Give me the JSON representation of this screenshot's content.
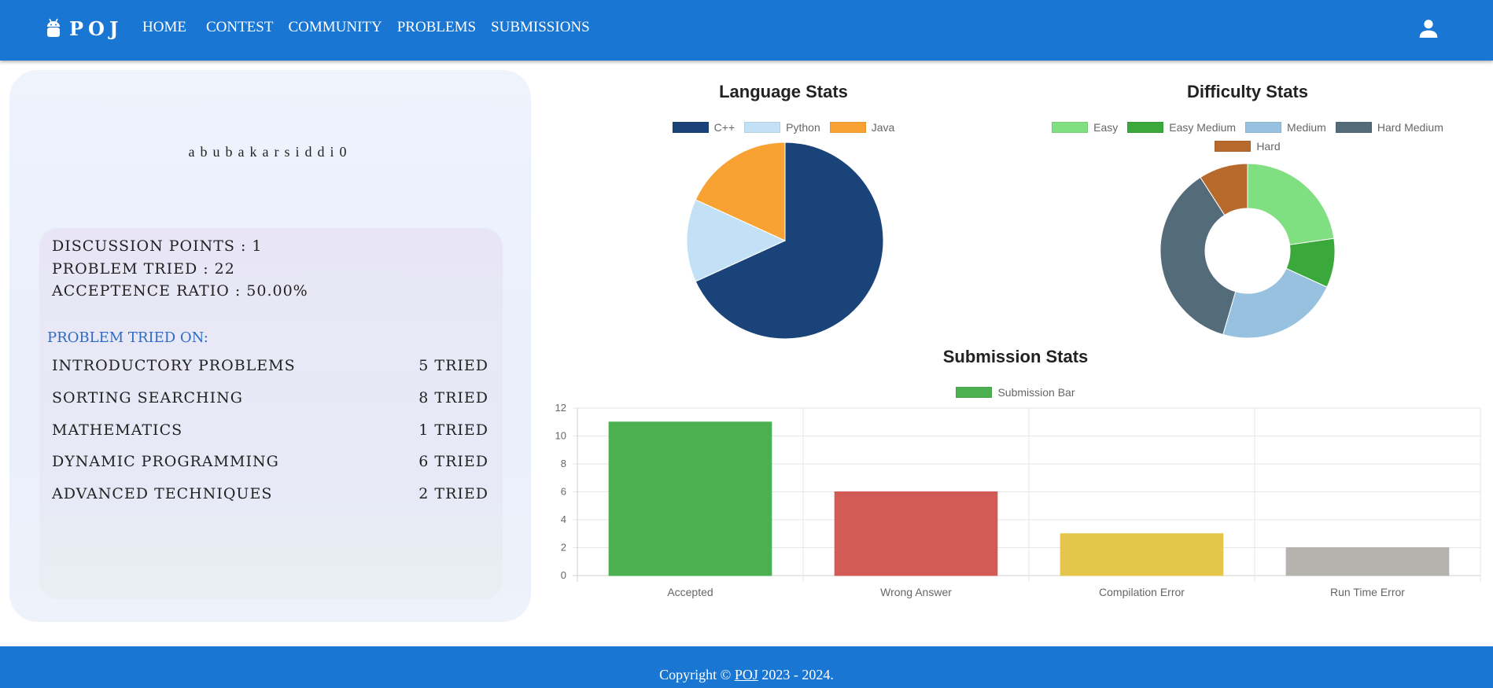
{
  "nav": {
    "brand": "POJ",
    "links": [
      "HOME",
      "CONTEST",
      "COMMUNITY",
      "PROBLEMS",
      "SUBMISSIONS"
    ],
    "brand_icon": "android-icon",
    "user_icon": "user-icon"
  },
  "profile": {
    "username": "abubakarsiddi0",
    "discussion_points": "DISCUSSION POINTS : 1",
    "problem_tried": "PROBLEM TRIED : 22",
    "acceptance_ratio": "ACCEPTENCE RATIO : 50.00%",
    "tried_heading": "PROBLEM TRIED ON:",
    "categories": [
      {
        "name": "INTRODUCTORY PROBLEMS",
        "count": "5 TRIED"
      },
      {
        "name": "SORTING SEARCHING",
        "count": "8 TRIED"
      },
      {
        "name": "MATHEMATICS",
        "count": "1 TRIED"
      },
      {
        "name": "DYNAMIC PROGRAMMING",
        "count": "6 TRIED"
      },
      {
        "name": "ADVANCED TECHNIQUES",
        "count": "2 TRIED"
      }
    ]
  },
  "chart_data": [
    {
      "type": "pie",
      "title": "Language Stats",
      "legend": "top",
      "labels": [
        "C++",
        "Python",
        "Java"
      ],
      "values": [
        15,
        3,
        4
      ],
      "colors": [
        "#1a4379",
        "#c3e1f6",
        "#f7a233"
      ]
    },
    {
      "type": "pie",
      "variant": "doughnut",
      "title": "Difficulty Stats",
      "legend": "top",
      "labels": [
        "Easy",
        "Easy Medium",
        "Medium",
        "Hard Medium",
        "Hard"
      ],
      "values": [
        5,
        2,
        5,
        8,
        2
      ],
      "colors": [
        "#80df80",
        "#3aa83a",
        "#97c1df",
        "#546b7a",
        "#b86a2c"
      ]
    },
    {
      "type": "bar",
      "title": "Submission Stats",
      "legend": "top",
      "categories": [
        "Accepted",
        "Wrong Answer",
        "Compilation Error",
        "Run Time Error"
      ],
      "series": [
        {
          "name": "Submission Bar",
          "values": [
            11,
            6,
            3,
            2
          ]
        }
      ],
      "colors": [
        "#4caf50",
        "#d35b55",
        "#e3c64b",
        "#b4b3ad"
      ],
      "legend_color": "#4caf50",
      "ylim": [
        0,
        12
      ],
      "yticks": [
        0,
        2,
        4,
        6,
        8,
        10,
        12
      ],
      "grid": true
    }
  ],
  "footer": {
    "prefix": "Copyright © ",
    "link": "POJ",
    "suffix": " 2023 - 2024."
  },
  "colors": {
    "primary": "#1976d2",
    "heading_blue": "#2e6cc4"
  }
}
